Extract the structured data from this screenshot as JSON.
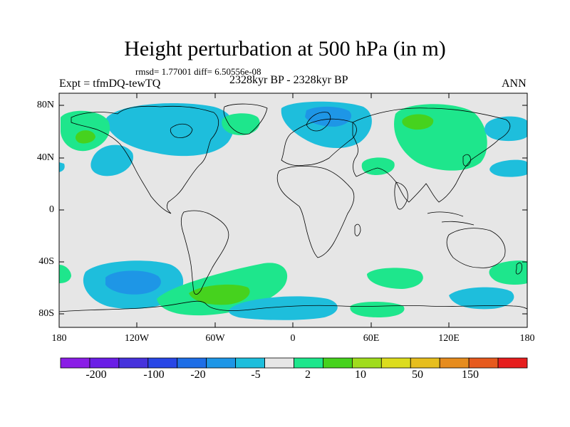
{
  "title": "Height perturbation at 500 hPa (in m)",
  "stats": "rmsd= 1.77001  diff= 6.50556e-08",
  "expt": "Expt = tfmDQ-tewTQ",
  "period": "2328kyr BP - 2328kyr BP",
  "season": "ANN",
  "lat_labels": [
    "80N",
    "40N",
    "0",
    "40S",
    "80S"
  ],
  "lon_labels": [
    "180",
    "120W",
    "60W",
    "0",
    "60E",
    "120E",
    "180"
  ],
  "colorbar": {
    "colors": [
      "#8a1ee6",
      "#6a1ee6",
      "#4632dc",
      "#2846e6",
      "#1e6ee6",
      "#1e96e6",
      "#1ebedc",
      "#e6e6e6",
      "#1ee68c",
      "#46d21e",
      "#a0dc1e",
      "#dcdc1e",
      "#e6be1e",
      "#e68c1e",
      "#e65a1e",
      "#e61e1e"
    ],
    "labels": [
      "-200",
      "-100",
      "-20",
      "-5",
      "2",
      "10",
      "50",
      "150"
    ]
  },
  "colors": {
    "map_background": "#e6e6e6",
    "coast": "#000000",
    "cyan": "#1ebedc",
    "green": "#1ee68c",
    "blue": "#1e96e6",
    "bright_green": "#46d21e"
  }
}
